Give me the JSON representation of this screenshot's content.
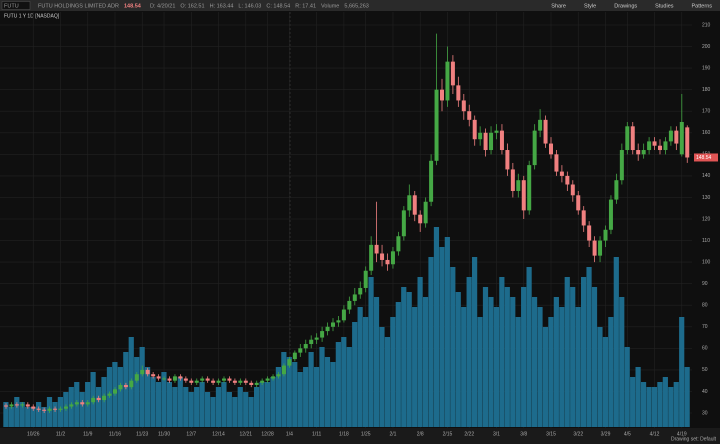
{
  "header": {
    "symbol": "FUTU",
    "company": "FUTU HOLDINGS LIMITED ADR",
    "quote": [
      "D: 4/20/21",
      "O: 162.51",
      "H: 163.44",
      "L: 146.03",
      "C: 148.54",
      "R: 17.41",
      "Volume",
      "5,665,263"
    ]
  },
  "toolbar": [
    "Share",
    "Style",
    "Drawings",
    "Studies",
    "Patterns"
  ],
  "footer": "Drawing set: Default",
  "chart_data": {
    "type": "candlestick",
    "title": "FUTU 1 Y 1D [NASDAQ]",
    "categories": [
      null,
      null,
      null,
      null,
      null,
      "10/26",
      null,
      null,
      null,
      null,
      "11/2",
      null,
      null,
      null,
      null,
      "11/9",
      null,
      null,
      null,
      null,
      "11/16",
      null,
      null,
      null,
      null,
      "11/23",
      null,
      null,
      null,
      "11/30",
      null,
      null,
      null,
      null,
      "12/7",
      null,
      null,
      null,
      null,
      "12/14",
      null,
      null,
      null,
      null,
      "12/21",
      null,
      null,
      null,
      "12/28",
      null,
      null,
      null,
      "1/4",
      null,
      null,
      null,
      null,
      "1/11",
      null,
      null,
      null,
      null,
      "1/18",
      null,
      null,
      null,
      "1/25",
      null,
      null,
      null,
      null,
      "2/1",
      null,
      null,
      null,
      null,
      "2/8",
      null,
      null,
      null,
      null,
      "2/15",
      null,
      null,
      null,
      "2/22",
      null,
      null,
      null,
      null,
      "3/1",
      null,
      null,
      null,
      null,
      "3/8",
      null,
      null,
      null,
      null,
      "3/15",
      null,
      null,
      null,
      null,
      "3/22",
      null,
      null,
      null,
      null,
      "3/29",
      null,
      null,
      null,
      "4/5",
      null,
      null,
      null,
      null,
      "4/12",
      null,
      null,
      null,
      null,
      "4/19",
      null
    ],
    "open": [
      33.5,
      33,
      34,
      33.5,
      34,
      33,
      32,
      31.5,
      31,
      32,
      31.5,
      32,
      33,
      34,
      35,
      34,
      35,
      37,
      36,
      38,
      39,
      41,
      43,
      42,
      45,
      48,
      50,
      48,
      47,
      46,
      46,
      45,
      47,
      46,
      45,
      44,
      45,
      46,
      45,
      44,
      45,
      46,
      45,
      44,
      45,
      44,
      43,
      44,
      45,
      46,
      47,
      48,
      52,
      55,
      58,
      60,
      62,
      64,
      65,
      68,
      70,
      72,
      73,
      78,
      82,
      85,
      88,
      96,
      108,
      104,
      101,
      99,
      105,
      112,
      124,
      131,
      122,
      118,
      128,
      147,
      180,
      175,
      193,
      182,
      175,
      170,
      166,
      157,
      160,
      152,
      160,
      161,
      152,
      143,
      133,
      138,
      124,
      145,
      161,
      166,
      155,
      150,
      142,
      140,
      136,
      131,
      124,
      117,
      110,
      103,
      110,
      115,
      129,
      138,
      152,
      163,
      152,
      150,
      152,
      156,
      154,
      152,
      156,
      161,
      150,
      162.51
    ],
    "high": [
      34.5,
      35,
      35,
      35,
      35,
      34,
      33,
      32.5,
      33,
      33,
      33,
      34,
      35,
      36,
      36,
      36,
      38,
      38,
      39,
      40,
      42,
      44,
      44,
      46,
      49,
      52,
      51,
      49,
      48,
      47,
      47,
      48,
      48,
      47,
      46,
      46,
      47,
      47,
      46,
      46,
      47,
      47,
      46,
      46,
      46,
      45,
      45,
      46,
      47,
      48,
      49,
      53,
      56,
      59,
      62,
      64,
      66,
      67,
      70,
      72,
      74,
      75,
      80,
      84,
      88,
      91,
      98,
      112,
      128,
      108,
      104,
      107,
      114,
      126,
      136,
      133,
      124,
      130,
      150,
      206,
      185,
      200,
      196,
      186,
      178,
      173,
      168,
      163,
      162,
      163,
      164,
      164,
      155,
      146,
      141,
      140,
      147,
      164,
      171,
      168,
      158,
      152,
      145,
      142,
      138,
      133,
      126,
      119,
      112,
      112,
      117,
      131,
      141,
      155,
      165,
      165,
      155,
      155,
      158,
      158,
      157,
      158,
      163,
      163,
      178,
      163.44
    ],
    "low": [
      32,
      32,
      32.5,
      32.5,
      32,
      31,
      30.5,
      30,
      30,
      30.5,
      30.5,
      31,
      32,
      33,
      33,
      33,
      34,
      35,
      35,
      37,
      38,
      40,
      41,
      41,
      44,
      47,
      47,
      46,
      45,
      45,
      44,
      44,
      45,
      44,
      43,
      43,
      44,
      44,
      43,
      43,
      44,
      44,
      43,
      43,
      43,
      42,
      42,
      43,
      44,
      45,
      46,
      47,
      51,
      54,
      56,
      58,
      60,
      62,
      63,
      66,
      68,
      70,
      72,
      76,
      80,
      83,
      86,
      94,
      100,
      98,
      96,
      97,
      103,
      110,
      121,
      119,
      114,
      116,
      126,
      145,
      170,
      172,
      178,
      172,
      166,
      163,
      154,
      154,
      149,
      150,
      157,
      150,
      140,
      130,
      130,
      120,
      122,
      143,
      158,
      153,
      148,
      140,
      137,
      133,
      128,
      122,
      114,
      107,
      100,
      100,
      107,
      113,
      127,
      136,
      150,
      150,
      147,
      148,
      150,
      152,
      150,
      150,
      154,
      152,
      149,
      146.03
    ],
    "close": [
      33,
      34,
      33.5,
      34,
      33,
      32,
      31.5,
      31,
      32,
      31.5,
      32,
      33,
      34,
      35,
      34,
      35,
      37,
      36,
      38,
      39,
      41,
      43,
      42,
      45,
      48,
      50,
      48,
      47,
      46,
      46,
      45,
      47,
      46,
      45,
      44,
      45,
      46,
      45,
      44,
      45,
      46,
      45,
      44,
      45,
      44,
      43,
      44,
      45,
      46,
      47,
      48,
      52,
      55,
      58,
      60,
      62,
      64,
      65,
      68,
      70,
      72,
      73,
      78,
      82,
      85,
      88,
      96,
      108,
      104,
      101,
      99,
      105,
      112,
      124,
      131,
      122,
      118,
      128,
      147,
      180,
      175,
      193,
      182,
      175,
      170,
      166,
      157,
      160,
      152,
      160,
      161,
      152,
      143,
      133,
      138,
      124,
      145,
      161,
      166,
      155,
      150,
      142,
      140,
      136,
      131,
      124,
      117,
      110,
      103,
      110,
      115,
      129,
      138,
      152,
      163,
      152,
      150,
      152,
      156,
      154,
      152,
      156,
      161,
      155,
      165,
      148.54
    ],
    "volume": [
      5,
      4,
      6,
      5,
      4,
      4,
      5,
      4,
      6,
      5,
      6,
      7,
      8,
      9,
      7,
      9,
      11,
      8,
      10,
      12,
      13,
      12,
      15,
      18,
      14,
      16,
      12,
      10,
      9,
      11,
      9,
      8,
      10,
      8,
      7,
      8,
      9,
      7,
      6,
      8,
      9,
      7,
      6,
      8,
      7,
      6,
      8,
      9,
      9,
      10,
      12,
      15,
      14,
      13,
      11,
      12,
      15,
      12,
      16,
      14,
      13,
      17,
      18,
      16,
      21,
      24,
      22,
      30,
      26,
      20,
      18,
      22,
      25,
      28,
      27,
      24,
      30,
      26,
      34,
      40,
      36,
      38,
      32,
      27,
      24,
      30,
      34,
      22,
      28,
      26,
      24,
      30,
      28,
      26,
      22,
      28,
      32,
      26,
      24,
      20,
      22,
      26,
      24,
      30,
      28,
      24,
      30,
      32,
      28,
      20,
      18,
      22,
      34,
      26,
      16,
      10,
      12,
      9,
      8,
      8,
      9,
      10,
      8,
      9,
      22,
      12
    ],
    "ylim": [
      30,
      210
    ],
    "yticks": [
      30,
      40,
      50,
      60,
      70,
      80,
      90,
      100,
      110,
      120,
      130,
      140,
      150,
      160,
      170,
      180,
      190,
      200,
      210
    ],
    "grid": true,
    "up_color": "#45a845",
    "down_color": "#f08080",
    "volume_color": "#1d6b8c"
  }
}
